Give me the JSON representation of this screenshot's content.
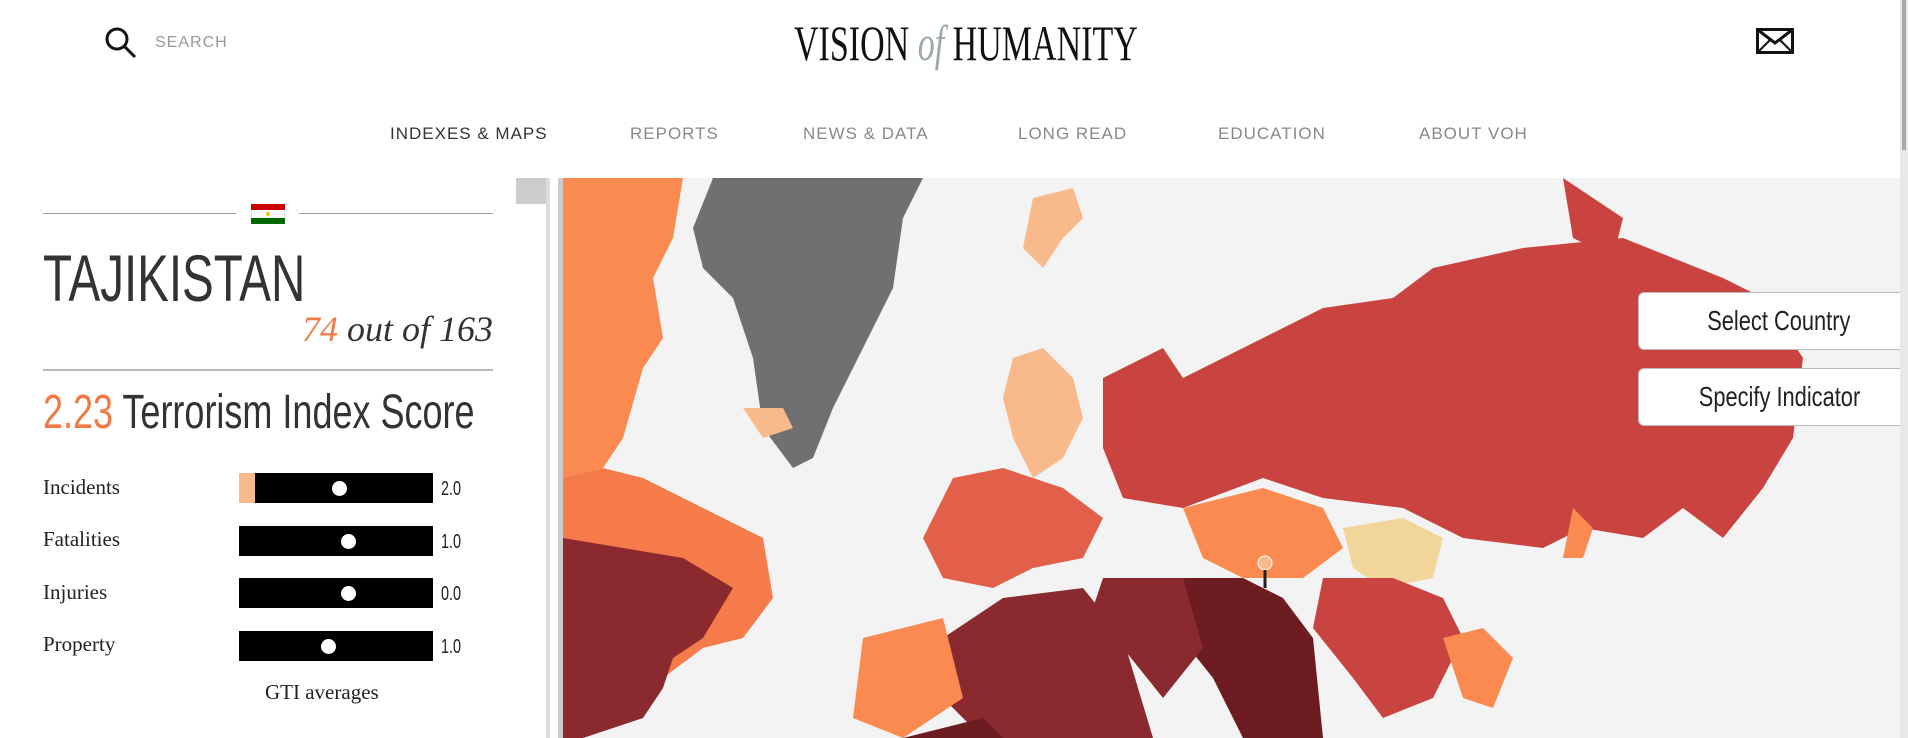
{
  "header": {
    "search": "SEARCH",
    "logo_left": "VISION",
    "logo_mid": "of",
    "logo_right": "HUMANITY"
  },
  "nav": [
    "INDEXES & MAPS",
    "REPORTS",
    "NEWS & DATA",
    "LONG READ",
    "EDUCATION",
    "ABOUT VOH"
  ],
  "panel": {
    "country": "TAJIKISTAN",
    "rank": "74",
    "rank_text": "out of 163",
    "score": "2.23",
    "score_label": "Terrorism Index Score",
    "indicators": [
      {
        "label": "Incidents",
        "value": "2.0"
      },
      {
        "label": "Fatalities",
        "value": "1.0"
      },
      {
        "label": "Injuries",
        "value": "0.0"
      },
      {
        "label": "Property",
        "value": "1.0"
      }
    ],
    "footer": "GTI averages"
  },
  "buttons": [
    "Select Country",
    "Specify Indicator"
  ]
}
